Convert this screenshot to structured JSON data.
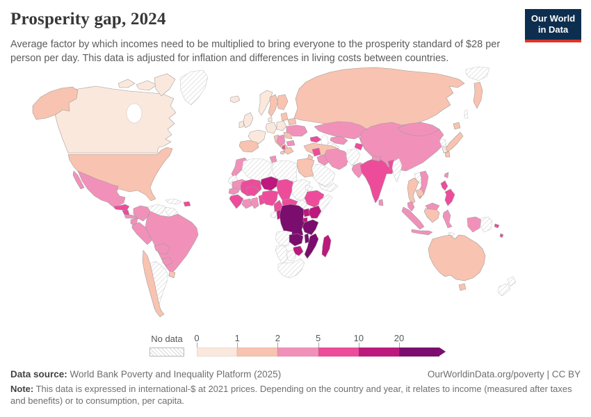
{
  "header": {
    "title": "Prosperity gap, 2024",
    "subtitle": "Average factor by which incomes need to be multiplied to bring everyone to the prosperity standard of $28 per person per day. This data is adjusted for inflation and differences in living costs between countries.",
    "logo": {
      "line1": "Our World",
      "line2": "in Data",
      "bg_color": "#0d2e4e",
      "accent_color": "#dc3328"
    }
  },
  "chart_data": {
    "type": "choropleth",
    "title": "Prosperity gap, 2024",
    "year": "2024",
    "unit": "average income multiplication factor to reach $28 per person per day",
    "legend": {
      "no_data_label": "No data",
      "ticks": [
        "0",
        "1",
        "2",
        "5",
        "10",
        "20"
      ],
      "open_ended_arrow": true,
      "colors": [
        "#fbe8dc",
        "#f8c3b0",
        "#f191ba",
        "#ed4c9b",
        "#bc187d",
        "#7b0d6e"
      ],
      "bin_ranges": [
        "0-1",
        "1-2",
        "2-5",
        "5-10",
        "10-20",
        "20+"
      ]
    },
    "countries": {
      "greenland": "no-data",
      "canada": "0-1",
      "arctic-island-1": "0-1",
      "arctic-island-2": "0-1",
      "arctic-island-3": "0-1",
      "alaska": "1-2",
      "united-states": "1-2",
      "mexico": "2-5",
      "baja-california": "2-5",
      "guatemala-honduras": "5-10",
      "nicaragua": "5-10",
      "costa-rica-panama": "2-5",
      "cuba": "no-data",
      "hispaniola": "5-10",
      "colombia": "2-5",
      "venezuela": "no-data",
      "guyanas": "no-data",
      "ecuador": "2-5",
      "peru": "2-5",
      "brazil": "2-5",
      "bolivia": "2-5",
      "paraguay": "2-5",
      "chile": "1-2",
      "argentina": "no-data",
      "uruguay": "1-2",
      "iceland": "0-1",
      "norway": "0-1",
      "sweden": "1-2",
      "finland": "1-2",
      "united-kingdom": "0-1",
      "ireland": "0-1",
      "france": "0-1",
      "iberia": "1-2",
      "germany-central-europe": "0-1",
      "denmark": "0-1",
      "poland": "0-1",
      "italy": "1-2",
      "sicily": "1-2",
      "baltics": "1-2",
      "belarus": "1-2",
      "ukraine": "2-5",
      "romania": "1-2",
      "balkans": "2-5",
      "albania": "5-10",
      "greece": "1-2",
      "bulgaria": "2-5",
      "russia": "1-2",
      "chukotka": "no-data",
      "kamchatka": "1-2",
      "sakhalin": "no-data",
      "kazakhstan": "2-5",
      "uzbekistan": "2-5",
      "turkmenistan": "no-data",
      "kyrgyzstan": "2-5",
      "tajikistan": "5-10",
      "caucasus": "5-10",
      "turkey": "1-2",
      "syria": "5-10",
      "iraq": "2-5",
      "jordan-levant": "1-2",
      "saudi-arabia": "no-data",
      "yemen-oman": "no-data",
      "iran": "2-5",
      "afghanistan": "no-data",
      "pakistan": "2-5",
      "india": "5-10",
      "nepal": "2-5",
      "sri-lanka": "2-5",
      "bangladesh": "5-10",
      "myanmar": "no-data",
      "china": "2-5",
      "mongolia": "2-5",
      "north-korea": "no-data",
      "south-korea": "0-1",
      "japan-hokkaido": "1-2",
      "japan-honshu": "1-2",
      "japan-kyushu": "1-2",
      "taiwan": "2-5",
      "thailand": "1-2",
      "laos": "no-data",
      "vietnam": "2-5",
      "cambodia": "1-2",
      "malaysia-peninsula": "2-5",
      "east-malaysia": "2-5",
      "kalimantan": "1-2",
      "sumatra": "2-5",
      "java": "2-5",
      "sulawesi": "2-5",
      "west-papua": "2-5",
      "papua-new-guinea": "no-data",
      "philippines-luzon": "5-10",
      "philippines-mindanao": "5-10",
      "timor": "no-data",
      "solomon-islands": "5-10",
      "vanuatu-fiji": "5-10",
      "australia": "1-2",
      "tasmania": "1-2",
      "new-zealand-north": "no-data",
      "new-zealand-south": "no-data",
      "morocco": "2-5",
      "western-sahara": "no-data",
      "algeria": "no-data",
      "tunisia": "2-5",
      "libya": "no-data",
      "egypt": "1-2",
      "mauritania": "2-5",
      "mali": "5-10",
      "niger": "10-20",
      "chad": "5-10",
      "sudan": "no-data",
      "eritrea": "no-data",
      "ethiopia": "5-10",
      "somalia": "no-data",
      "south-sudan": "no-data",
      "senegal": "2-5",
      "guinea-sierra-leone-liberia": "5-10",
      "ivory-coast": "2-5",
      "ghana": "2-5",
      "togo-benin": "5-10",
      "burkina-faso": "5-10",
      "nigeria": "5-10",
      "cameroon": "5-10",
      "central-african-republic": "5-10",
      "gabon": "no-data",
      "congo": "10-20",
      "democratic-republic-of-congo": "20+",
      "uganda": "10-20",
      "kenya": "10-20",
      "rwanda-burundi": "10-20",
      "tanzania": "20+",
      "angola": "no-data",
      "zambia": "20+",
      "malawi": "20+",
      "mozambique": "20+",
      "zimbabwe": "10-20",
      "namibia": "no-data",
      "botswana": "no-data",
      "south-africa": "no-data",
      "madagascar": "10-20"
    }
  },
  "footer": {
    "data_source_label": "Data source:",
    "data_source_text": " World Bank Poverty and Inequality Platform (2025)",
    "citation": "OurWorldinData.org/poverty | CC BY",
    "note_label": "Note:",
    "note_text": " This data is expressed in international-$ at 2021 prices. Depending on the country and year, it relates to income (measured after taxes and benefits) or to consumption, per capita."
  }
}
